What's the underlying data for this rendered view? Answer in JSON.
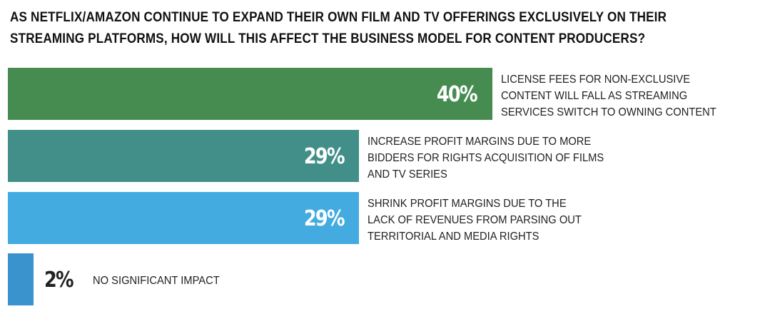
{
  "chart_data": {
    "type": "bar",
    "orientation": "horizontal",
    "title": "AS NETFLIX/AMAZON CONTINUE TO EXPAND THEIR OWN FILM AND TV OFFERINGS EXCLUSIVELY ON THEIR STREAMING PLATFORMS, HOW WILL THIS AFFECT THE BUSINESS MODEL FOR CONTENT PRODUCERS?",
    "categories": [
      "LICENSE FEES FOR NON-EXCLUSIVE\nCONTENT WILL FALL AS STREAMING\nSERVICES SWITCH TO OWNING CONTENT",
      "INCREASE PROFIT MARGINS DUE TO MORE\nBIDDERS FOR RIGHTS ACQUISITION OF FILMS\nAND TV SERIES",
      "SHRINK PROFIT MARGINS DUE TO THE\nLACK OF REVENUES FROM PARSING OUT\nTERRITORIAL AND MEDIA RIGHTS",
      "NO SIGNIFICANT IMPACT"
    ],
    "values": [
      40,
      29,
      29,
      2
    ],
    "value_labels": [
      "40%",
      "29%",
      "29%",
      "2%"
    ],
    "colors": [
      "#468c50",
      "#418f88",
      "#43abe0",
      "#3a93cc"
    ],
    "xlabel": "",
    "ylabel": "",
    "grid": false
  }
}
